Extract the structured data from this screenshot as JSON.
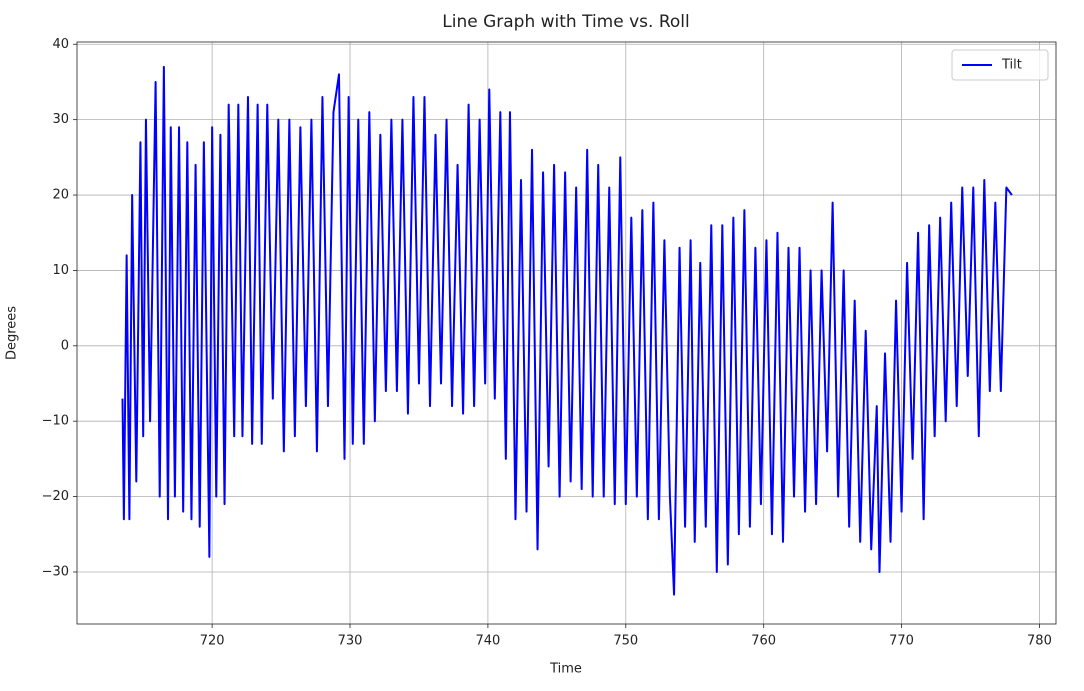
{
  "chart_data": {
    "type": "line",
    "title": "Line Graph with Time vs. Roll",
    "xlabel": "Time",
    "ylabel": "Degrees",
    "xlim": [
      710.2,
      781.2
    ],
    "ylim": [
      -36.9,
      40.3
    ],
    "xticks": [
      720,
      730,
      740,
      750,
      760,
      770,
      780
    ],
    "yticks": [
      {
        "value": -30,
        "label": "−30"
      },
      {
        "value": -20,
        "label": "−20"
      },
      {
        "value": -10,
        "label": "−10"
      },
      0,
      10,
      20,
      30,
      40
    ],
    "grid": true,
    "legend": "upper right",
    "series": [
      {
        "name": "Tilt",
        "color": "#0000ff",
        "x": [
          713.5,
          713.6,
          713.8,
          714.0,
          714.2,
          714.5,
          714.8,
          715.0,
          715.2,
          715.5,
          715.9,
          716.2,
          716.5,
          716.8,
          717.0,
          717.3,
          717.6,
          717.9,
          718.2,
          718.5,
          718.8,
          719.1,
          719.4,
          719.8,
          720.0,
          720.3,
          720.6,
          720.9,
          721.2,
          721.6,
          721.9,
          722.2,
          722.6,
          722.9,
          723.3,
          723.6,
          724.0,
          724.4,
          724.8,
          725.2,
          725.6,
          726.0,
          726.4,
          726.8,
          727.2,
          727.6,
          728.0,
          728.4,
          728.8,
          729.2,
          729.6,
          729.9,
          730.2,
          730.6,
          731.0,
          731.4,
          731.8,
          732.2,
          732.6,
          733.0,
          733.4,
          733.8,
          734.2,
          734.6,
          735.0,
          735.4,
          735.8,
          736.2,
          736.6,
          737.0,
          737.4,
          737.8,
          738.2,
          738.6,
          739.0,
          739.4,
          739.8,
          740.1,
          740.5,
          740.9,
          741.3,
          741.6,
          742.0,
          742.4,
          742.8,
          743.2,
          743.6,
          744.0,
          744.4,
          744.8,
          745.2,
          745.6,
          746.0,
          746.4,
          746.8,
          747.2,
          747.6,
          748.0,
          748.4,
          748.8,
          749.2,
          749.6,
          750.0,
          750.4,
          750.8,
          751.2,
          751.6,
          752.0,
          752.4,
          752.8,
          753.2,
          753.5,
          753.9,
          754.3,
          754.7,
          755.0,
          755.4,
          755.8,
          756.2,
          756.6,
          757.0,
          757.4,
          757.8,
          758.2,
          758.6,
          759.0,
          759.4,
          759.8,
          760.2,
          760.6,
          761.0,
          761.4,
          761.8,
          762.2,
          762.6,
          763.0,
          763.4,
          763.8,
          764.2,
          764.6,
          765.0,
          765.4,
          765.8,
          766.2,
          766.6,
          767.0,
          767.4,
          767.8,
          768.2,
          768.4,
          768.8,
          769.2,
          769.6,
          770.0,
          770.4,
          770.8,
          771.2,
          771.6,
          772.0,
          772.4,
          772.8,
          773.2,
          773.6,
          774.0,
          774.4,
          774.8,
          775.2,
          775.6,
          776.0,
          776.4,
          776.8,
          777.2,
          777.6,
          778.0
        ],
        "values": [
          -7,
          -23,
          12,
          -23,
          20,
          -18,
          27,
          -12,
          30,
          -10,
          35,
          -20,
          37,
          -23,
          29,
          -20,
          29,
          -22,
          27,
          -23,
          24,
          -24,
          27,
          -28,
          29,
          -20,
          28,
          -21,
          32,
          -12,
          32,
          -12,
          33,
          -13,
          32,
          -13,
          32,
          -7,
          30,
          -14,
          30,
          -12,
          29,
          -8,
          30,
          -14,
          33,
          -8,
          31,
          36,
          -15,
          33,
          -13,
          30,
          -13,
          31,
          -10,
          28,
          -6,
          30,
          -6,
          30,
          -9,
          33,
          -5,
          33,
          -8,
          28,
          -5,
          30,
          -8,
          24,
          -9,
          32,
          -8,
          30,
          -5,
          34,
          -7,
          31,
          -15,
          31,
          -23,
          22,
          -22,
          26,
          -27,
          23,
          -16,
          24,
          -20,
          23,
          -18,
          21,
          -19,
          26,
          -20,
          24,
          -20,
          21,
          -21,
          25,
          -21,
          17,
          -20,
          18,
          -23,
          19,
          -23,
          14,
          -20,
          -33,
          13,
          -24,
          14,
          -26,
          11,
          -24,
          16,
          -30,
          16,
          -29,
          17,
          -25,
          18,
          -24,
          13,
          -21,
          14,
          -25,
          15,
          -26,
          13,
          -20,
          13,
          -22,
          10,
          -21,
          10,
          -14,
          19,
          -20,
          10,
          -24,
          6,
          -26,
          2,
          -27,
          -8,
          -30,
          -1,
          -26,
          6,
          -22,
          11,
          -15,
          15,
          -23,
          16,
          -12,
          17,
          -10,
          19,
          -8,
          21,
          -4,
          21,
          -12,
          22,
          -6,
          19,
          -6,
          21,
          20
        ]
      }
    ]
  }
}
